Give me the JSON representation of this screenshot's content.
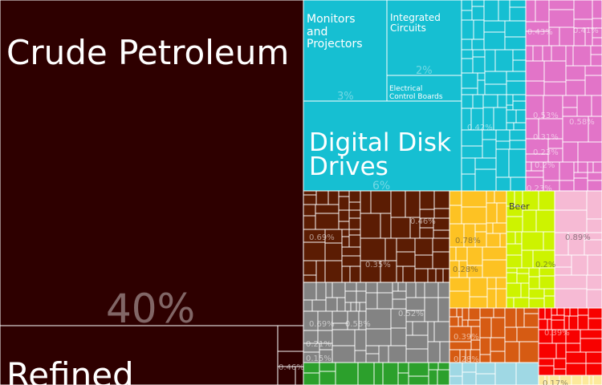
{
  "chart_data": {
    "type": "treemap",
    "title": "",
    "categories": [
      {
        "name": "Crude Petroleum",
        "share_label": "40%",
        "color": "#2e0000"
      },
      {
        "name": "Refined",
        "share_label": "",
        "color": "#2e0000"
      },
      {
        "name": "Digital Disk Drives",
        "share_label": "6%",
        "color": "#16bfd2"
      },
      {
        "name": "Monitors and Projectors",
        "share_label": "3%",
        "color": "#16bfd2"
      },
      {
        "name": "Integrated Circuits",
        "share_label": "2%",
        "color": "#16bfd2"
      },
      {
        "name": "Electrical Control Boards",
        "share_label": "",
        "color": "#16bfd2"
      },
      {
        "name": "Beer",
        "share_label": "0.46%",
        "color": "#cdf300"
      }
    ],
    "value_labels": [
      "0.46%",
      "0.42%",
      "0.43%",
      "0.41%",
      "0.53%",
      "0.58%",
      "0.31%",
      "0.23%",
      "0.2%",
      "0.23%",
      "0.69%",
      "0.46%",
      "0.35%",
      "0.78%",
      "0.28%",
      "0.2%",
      "0.89%",
      "0.69%",
      "0.58%",
      "0.52%",
      "0.21%",
      "0.15%",
      "0.39%",
      "0.28%",
      "0.39%",
      "0.17%"
    ],
    "group_colors": {
      "mineral": "#2e0000",
      "machines": "#16bfd2",
      "chemicals": "#e274c8",
      "metals": "#5b1c03",
      "food": "#fdc223",
      "vegetable": "#cdf300",
      "textiles": "#f6bad4",
      "stone": "#838383",
      "transport": "#d65b13",
      "plastics": "#f80100",
      "animal": "#2ca02c",
      "instruments": "#9fd8e4",
      "misc": "#fce99b"
    }
  }
}
